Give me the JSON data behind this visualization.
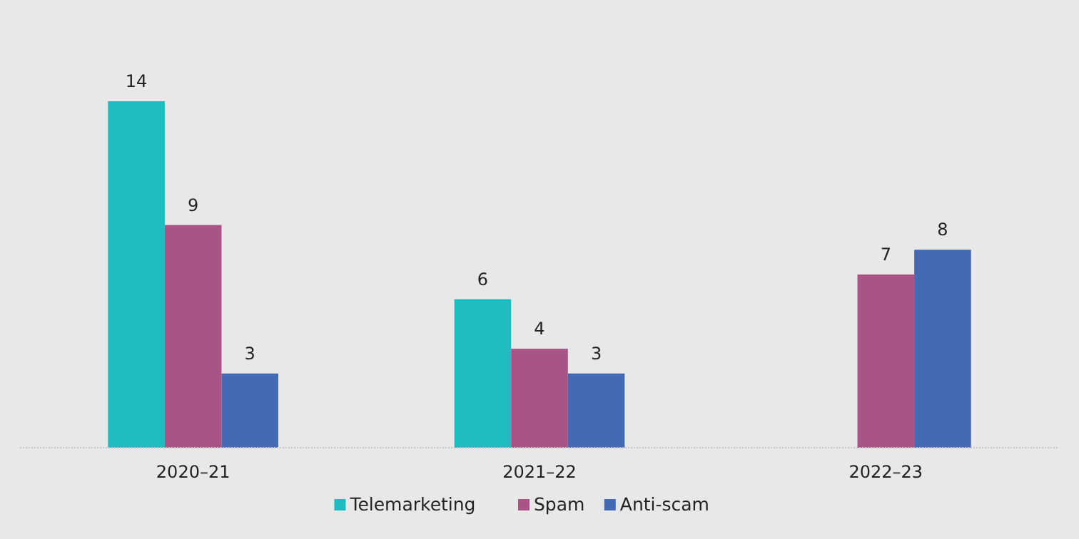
{
  "chart_data": {
    "type": "bar",
    "categories": [
      "2020–21",
      "2021–22",
      "2022–23"
    ],
    "series": [
      {
        "name": "Telemarketing",
        "color": "#1fbcbf",
        "values": [
          14,
          6,
          null
        ]
      },
      {
        "name": "Spam",
        "color": "#a85585",
        "values": [
          9,
          4,
          7
        ]
      },
      {
        "name": "Anti-scam",
        "color": "#436ab2",
        "values": [
          3,
          3,
          8
        ]
      }
    ],
    "data_labels": true,
    "legend": "bottom",
    "grid": false
  }
}
